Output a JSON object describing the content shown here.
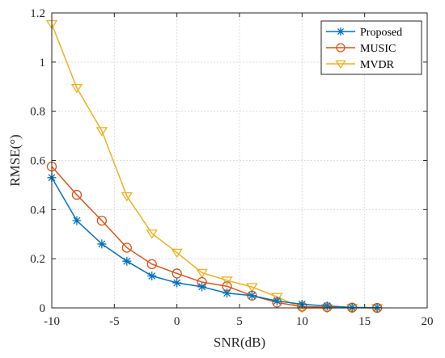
{
  "chart_data": {
    "type": "line",
    "title": "",
    "xlabel": "SNR(dB)",
    "ylabel": "RMSE(°)",
    "xlim": [
      -10,
      20
    ],
    "ylim": [
      0,
      1.2
    ],
    "xticks": [
      -10,
      -5,
      0,
      5,
      10,
      15,
      20
    ],
    "yticks": [
      0,
      0.2,
      0.4,
      0.6,
      0.8,
      1,
      1.2
    ],
    "xtick_labels": [
      "-10",
      "-5",
      "0",
      "5",
      "10",
      "15",
      "20"
    ],
    "ytick_labels": [
      "0",
      "0.2",
      "0.4",
      "0.6",
      "0.8",
      "1",
      "1.2"
    ],
    "grid": true,
    "legend_position": "top-right",
    "series": [
      {
        "name": "Proposed",
        "color": "#0072BD",
        "marker": "asterisk",
        "x": [
          -10,
          -8,
          -6,
          -4,
          -2,
          0,
          2,
          4,
          6,
          8,
          10,
          12,
          14,
          16
        ],
        "y": [
          0.53,
          0.355,
          0.26,
          0.19,
          0.13,
          0.102,
          0.086,
          0.06,
          0.05,
          0.028,
          0.015,
          0.008,
          0.002,
          0.001
        ]
      },
      {
        "name": "MUSIC",
        "color": "#D95319",
        "marker": "circle",
        "x": [
          -10,
          -8,
          -6,
          -4,
          -2,
          0,
          2,
          4,
          6,
          8,
          10,
          12,
          14,
          16
        ],
        "y": [
          0.575,
          0.46,
          0.355,
          0.245,
          0.178,
          0.14,
          0.105,
          0.088,
          0.05,
          0.022,
          0.005,
          0.003,
          0.001,
          0.0
        ]
      },
      {
        "name": "MVDR",
        "color": "#EDB120",
        "marker": "triangle-down",
        "x": [
          -10,
          -8,
          -6,
          -4,
          -2,
          0,
          2,
          4,
          6,
          8,
          10,
          12,
          14,
          16
        ],
        "y": [
          1.155,
          0.895,
          0.72,
          0.455,
          0.303,
          0.225,
          0.143,
          0.112,
          0.085,
          0.045,
          0.0,
          0.0,
          0.0,
          0.0
        ]
      }
    ]
  }
}
